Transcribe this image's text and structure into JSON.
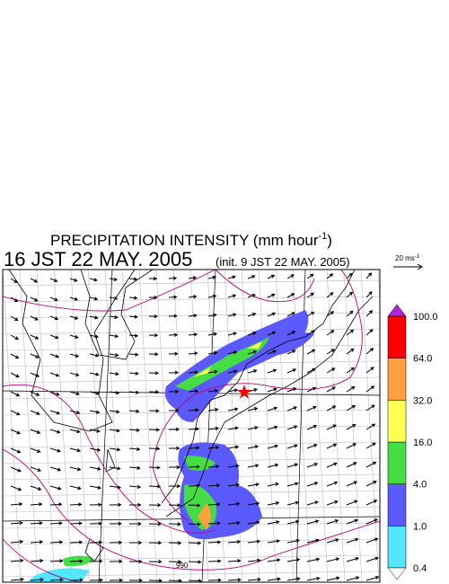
{
  "header": {
    "title": "PRECIPITATION INTENSITY (mm hour",
    "title_sup": "-1",
    "title_end": ")",
    "time": "16 JST 22 MAY. 2005",
    "init": "(init. 9 JST 22 MAY. 2005)"
  },
  "wind_key": {
    "label": "20 ms",
    "label_sup": "-1"
  },
  "colorbar": {
    "levels": [
      "0.4",
      "1.0",
      "4.0",
      "16.0",
      "32.0",
      "64.0",
      "100.0"
    ],
    "colors": [
      "#55e6ff",
      "#5a5aff",
      "#44dd44",
      "#ffff55",
      "#ffa040",
      "#ff0000"
    ],
    "over_color": "#b020e0",
    "under_color": "#ffffff"
  },
  "map": {
    "contour_label": "990"
  }
}
